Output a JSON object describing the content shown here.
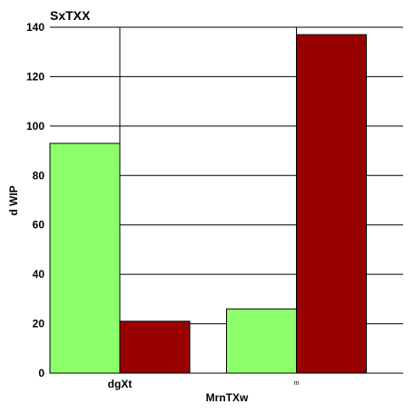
{
  "chart_data": {
    "type": "bar",
    "title": "SxTXX",
    "xlabel": "MrnTXw",
    "ylabel": "d  WIP",
    "categories": [
      "dgXt",
      "m"
    ],
    "series": [
      {
        "values": [
          93,
          26
        ],
        "color": "#8cff6b"
      },
      {
        "values": [
          21,
          137
        ],
        "color": "#990000"
      }
    ],
    "ylim": [
      0,
      140
    ],
    "yticks": [
      0,
      20,
      40,
      60,
      80,
      100,
      120,
      140
    ],
    "grid": true,
    "legend": "none"
  }
}
